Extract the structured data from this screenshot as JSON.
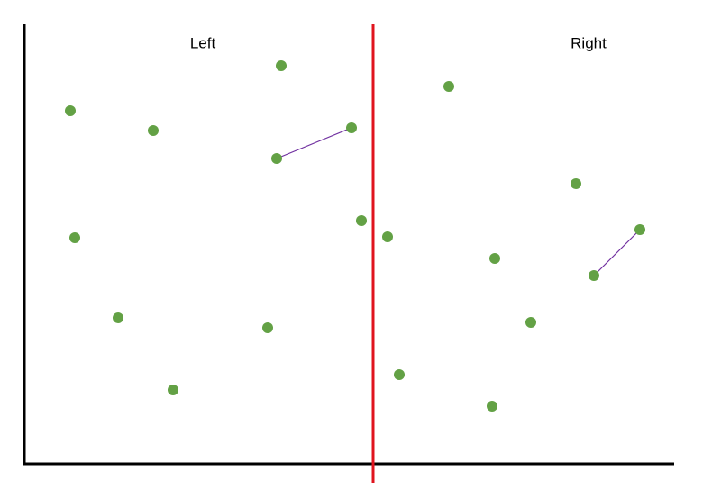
{
  "labels": {
    "left": "Left",
    "right": "Right"
  }
}
